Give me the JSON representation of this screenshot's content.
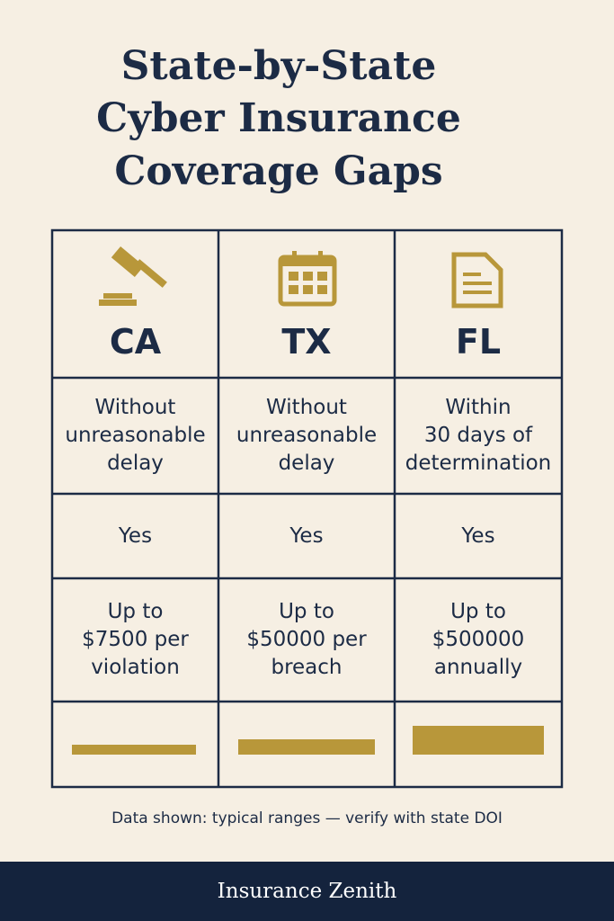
{
  "title_lines": [
    "State-by-State",
    "Cyber Insurance",
    "Coverage Gaps"
  ],
  "table": {
    "columns": [
      "CA",
      "TX",
      "FL"
    ],
    "rows": [
      [
        [
          "Without",
          "unreasonable",
          "delay"
        ],
        [
          "Without",
          "unreasonable",
          "delay"
        ],
        [
          "Within",
          "30 days of",
          "determination"
        ]
      ],
      [
        [
          "Yes"
        ],
        [
          "Yes"
        ],
        [
          "Yes"
        ]
      ],
      [
        [
          "Up to",
          "$7500 per",
          "violation"
        ],
        [
          "Up to",
          "$50000 per",
          "breach"
        ],
        [
          "Up to",
          "$500000",
          "annually"
        ]
      ]
    ]
  },
  "footnote": "Data shown: typical ranges — verify with state DOI",
  "footer": "Insurance Zenith"
}
